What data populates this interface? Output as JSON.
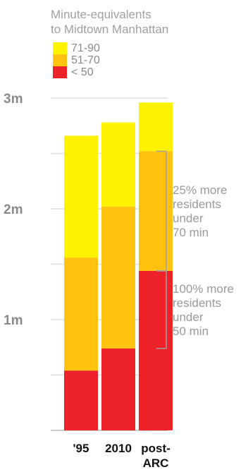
{
  "chart_data": {
    "type": "stacked-bar",
    "title": "Minute-equivalents to Midtown Manhattan",
    "title_lines": [
      "Minute-equivalents",
      "to Midtown Manhattan"
    ],
    "categories": [
      "'95",
      "2010",
      "post-ARC"
    ],
    "category_lines": [
      [
        "'95"
      ],
      [
        "2010"
      ],
      [
        "post-",
        "ARC"
      ]
    ],
    "ylim": [
      0,
      3
    ],
    "yticks": [
      {
        "value": 1,
        "label": "1m"
      },
      {
        "value": 2,
        "label": "2m"
      },
      {
        "value": 3,
        "label": "3m"
      }
    ],
    "minor_gridlines": [
      0.5,
      1.5,
      2.5
    ],
    "series": [
      {
        "name": "< 50",
        "color": "#ee2229",
        "values": [
          0.54,
          0.74,
          1.44
        ]
      },
      {
        "name": "51-70",
        "color": "#ffc20e",
        "values": [
          1.02,
          1.28,
          1.08
        ]
      },
      {
        "name": "71-90",
        "color": "#fff200",
        "values": [
          1.1,
          0.76,
          0.44
        ]
      }
    ],
    "legend": {
      "placement": "top-left",
      "order": [
        "71-90",
        "51-70",
        "< 50"
      ]
    },
    "annotations": [
      {
        "bar": "post-ARC",
        "from": 1.44,
        "to": 2.52,
        "lines": [
          "25% more",
          "residents",
          "under",
          "70 min"
        ]
      },
      {
        "bar": "post-ARC",
        "from": 0.74,
        "to": 1.44,
        "lines": [
          "100% more",
          "residents",
          "under",
          "50 min"
        ]
      }
    ],
    "grid": true,
    "gridline_color": "#dddddd",
    "annotation_color": "#a0a0a0"
  }
}
